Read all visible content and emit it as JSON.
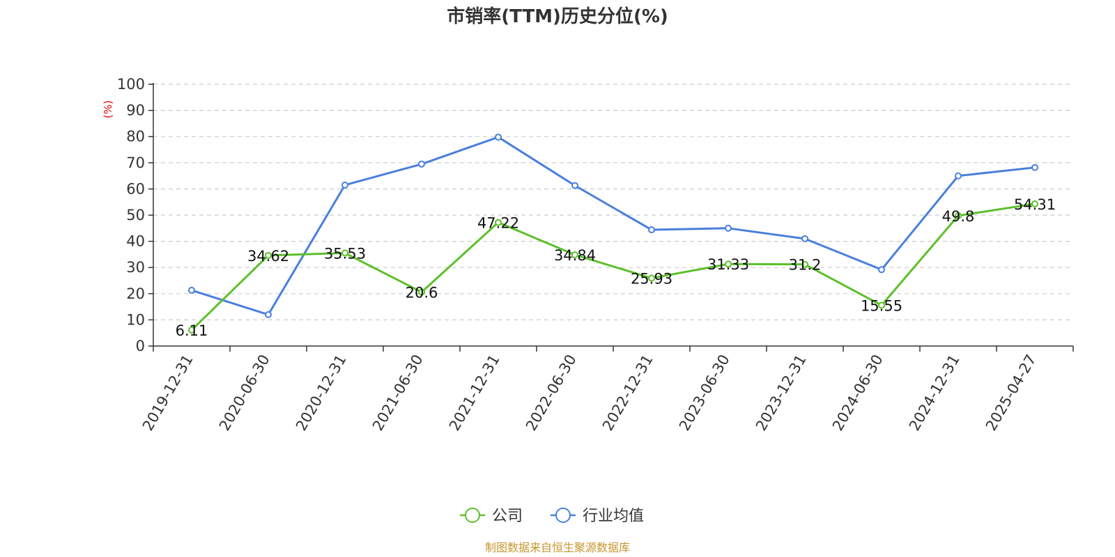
{
  "chart_data": {
    "type": "line",
    "title": "市销率(TTM)历史分位(%)",
    "ylabel": "(%)",
    "xlabel": "",
    "ylim": [
      0,
      100
    ],
    "yticks": [
      0,
      10,
      20,
      30,
      40,
      50,
      60,
      70,
      80,
      90,
      100
    ],
    "grid": true,
    "legend_position": "bottom",
    "categories": [
      "2019-12-31",
      "2020-06-30",
      "2020-12-31",
      "2021-06-30",
      "2021-12-31",
      "2022-06-30",
      "2022-12-31",
      "2023-06-30",
      "2023-12-31",
      "2024-06-30",
      "2024-12-31",
      "2025-04-27"
    ],
    "series": [
      {
        "name": "公司",
        "color": "#5cc02a",
        "show_labels": true,
        "values": [
          6.11,
          34.62,
          35.53,
          20.6,
          47.22,
          34.84,
          25.93,
          31.33,
          31.2,
          15.55,
          49.8,
          54.31
        ],
        "labels": [
          "6.11",
          "34.62",
          "35.53",
          "20.6",
          "47.22",
          "34.84",
          "25.93",
          "31.33",
          "31.2",
          "15.55",
          "49.8",
          "54.31"
        ]
      },
      {
        "name": "行业均值",
        "color": "#4a7fdc",
        "show_labels": false,
        "values": [
          21.3,
          12.0,
          61.5,
          69.5,
          79.8,
          61.3,
          44.4,
          45.0,
          41.0,
          29.2,
          65.0,
          68.2
        ]
      }
    ],
    "source": "制图数据来自恒生聚源数据库"
  }
}
